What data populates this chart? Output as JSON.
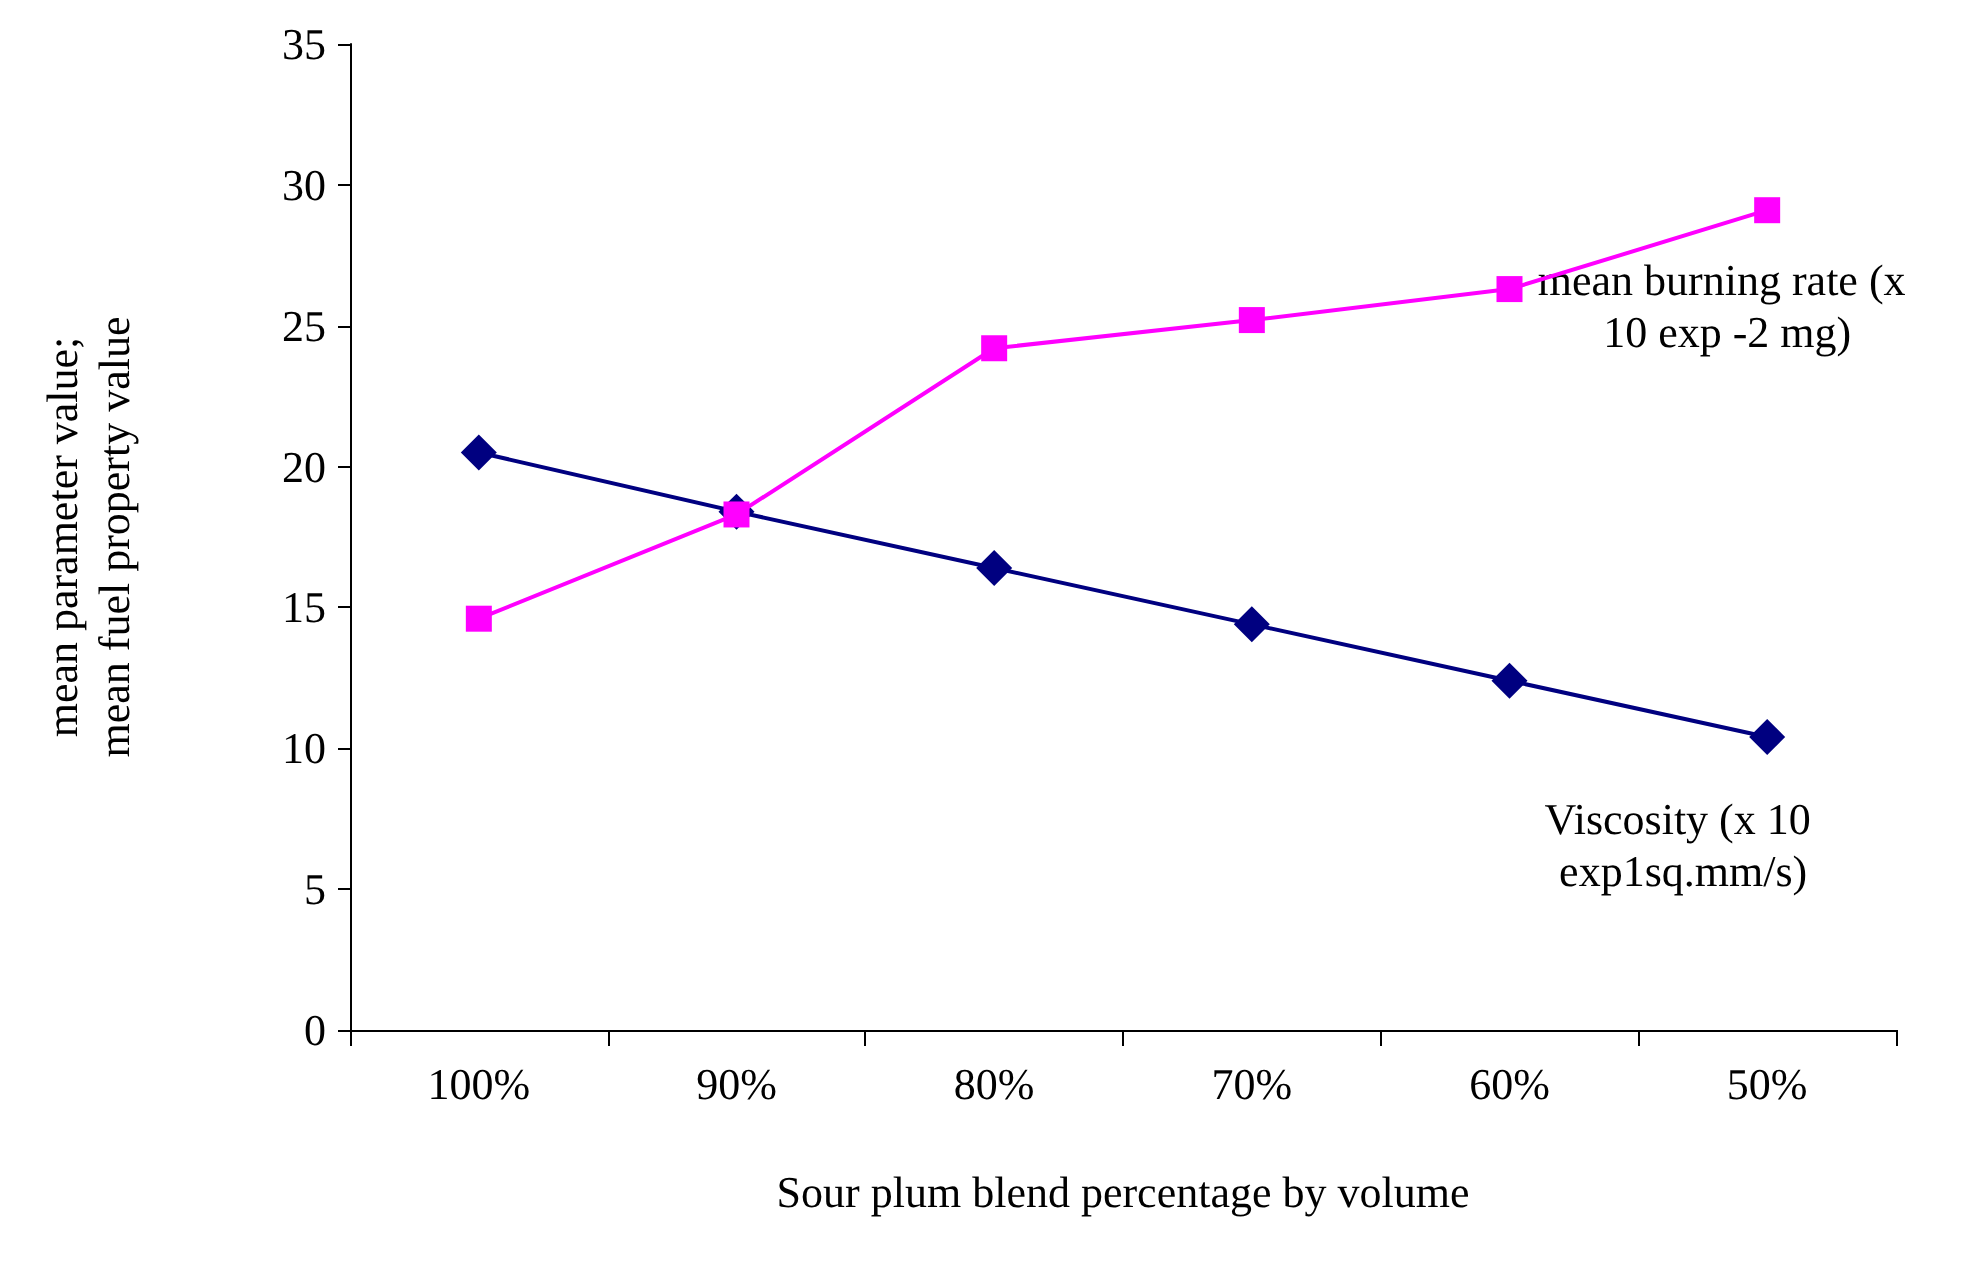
{
  "chart_data": {
    "type": "line",
    "xlabel": "Sour plum blend percentage by volume",
    "ylabel": "mean parameter value;\nmean fuel property value",
    "categories": [
      "100%",
      "90%",
      "80%",
      "70%",
      "60%",
      "50%"
    ],
    "series": [
      {
        "name": "Viscosity (x 10 exp1sq.mm/s)",
        "color": "#000080",
        "marker": "diamond",
        "values": [
          20.5,
          18.4,
          16.4,
          14.4,
          12.4,
          10.4
        ]
      },
      {
        "name": "mean burning rate (x 10 exp -2 mg)",
        "color": "#ff00ff",
        "marker": "square",
        "values": [
          14.6,
          18.3,
          24.2,
          25.2,
          26.3,
          29.1
        ]
      }
    ],
    "ylim": [
      0,
      35
    ],
    "yticks": [
      0,
      5,
      10,
      15,
      20,
      25,
      30,
      35
    ],
    "grid": false,
    "legend": false,
    "line_style": "solid"
  }
}
